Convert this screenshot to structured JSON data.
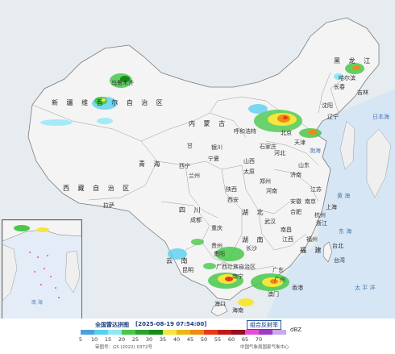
{
  "title": "全国雷达拼图",
  "timestamp": "[2025-08-19 07:54:00]",
  "product": "组合反射率",
  "unit": "dBZ",
  "review_number": "审图号：GS (2022) 0372号",
  "issuer": "中国气象局国家气象中心",
  "legend_colors": [
    "#4f9fdc",
    "#5ad0f0",
    "#8fe8f6",
    "#48c84a",
    "#2aa32c",
    "#178a1a",
    "#f4e63c",
    "#e6b814",
    "#f08a14",
    "#e83b14",
    "#c01818",
    "#901020",
    "#e44ed6",
    "#9a3cc8",
    "#c8a8f0"
  ],
  "legend_ticks": [
    "5",
    "10",
    "15",
    "20",
    "25",
    "30",
    "35",
    "40",
    "45",
    "50",
    "55",
    "60",
    "65",
    "70"
  ],
  "labels": {
    "xinjiang": "新 疆 维 吾 尔 自 治 区",
    "urumqi": "乌鲁木齐",
    "xizang": "西 藏 自 治 区",
    "lhasa": "拉萨",
    "qinghai": "青 海",
    "xining": "西宁",
    "gansu": "甘",
    "lanzhou": "兰州",
    "neimenggu": "内 蒙 古",
    "huhehaote": "呼和浩特",
    "yinchuan": "银川",
    "ningxia": "宁夏",
    "heilongjiang": "黑 龙 江",
    "harbin": "哈尔滨",
    "jilin": "吉林",
    "changchun": "长春",
    "liaoning": "辽宁",
    "shenyang": "沈阳",
    "beijing": "北京",
    "tianjin": "天津",
    "hebei": "河北",
    "shijiazhuang": "石家庄",
    "shanxi": "山西",
    "taiyuan": "太原",
    "shandong": "山东",
    "jinan": "济南",
    "henan": "河南",
    "zhengzhou": "郑州",
    "shaanxi": "陕西",
    "xian": "西安",
    "sichuan": "四 川",
    "chengdu": "成都",
    "chongqing": "重庆",
    "hubei": "湖 北",
    "wuhan": "武汉",
    "anhui": "安徽",
    "hefei": "合肥",
    "jiangsu": "江苏",
    "nanjing": "南京",
    "shanghai": "上海",
    "zhejiang": "浙江",
    "hangzhou": "杭州",
    "hunan": "湖 南",
    "changsha": "长沙",
    "jiangxi": "江西",
    "nanchang": "南昌",
    "fujian": "福 建",
    "fuzhou": "福州",
    "taiwan": "台湾",
    "taibei": "台北",
    "guizhou": "贵州",
    "guiyang": "贵阳",
    "yunnan": "云 南",
    "kunming": "昆明",
    "guangxi": "广西壮族自治区",
    "nanning": "南宁",
    "guangdong": "广东",
    "guangzhou": "广州",
    "xianggang": "香港",
    "aomen": "澳门",
    "hainan": "海南",
    "haikou": "海口",
    "bohai": "渤海",
    "huanghai": "黄 海",
    "donghai": "东 海",
    "taipingyang": "太 平 洋",
    "riben": "日本海",
    "nanhai": "南 海"
  }
}
